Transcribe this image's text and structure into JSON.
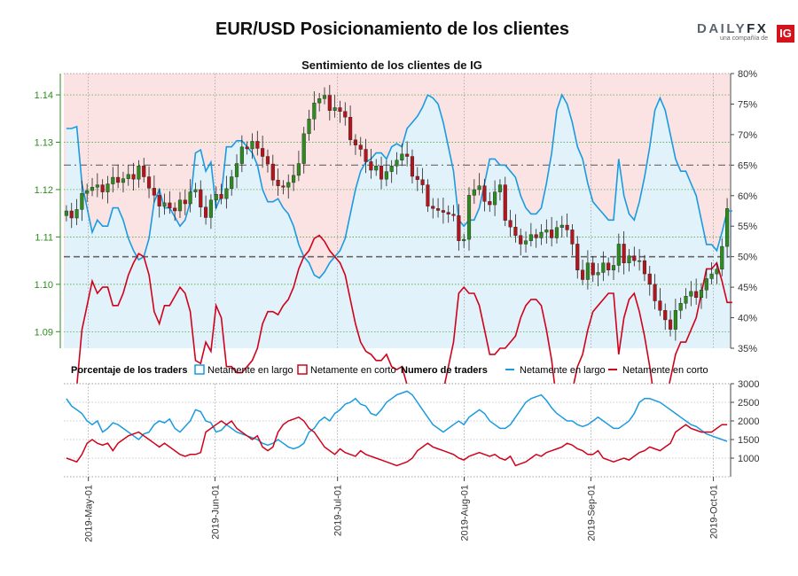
{
  "header": {
    "title": "EUR/USD Posicionamiento de los clientes",
    "logo_word": "DAILY",
    "logo_word_fx": "FX",
    "logo_sub": "una compañía de",
    "logo_ig": "IG"
  },
  "chart_data": [
    {
      "type": "line",
      "title": "Sentimiento de los clientes de IG",
      "x_start": "2019-04-25",
      "x_ticks": [
        "2019-May-01",
        "2019-Jun-01",
        "2019-Jul-01",
        "2019-Aug-01",
        "2019-Sep-01",
        "2019-Oct-01"
      ],
      "y_left_ticks": [
        "1.09",
        "1.10",
        "1.11",
        "1.12",
        "1.13",
        "1.14"
      ],
      "y_left_range": [
        1.0865,
        1.1445
      ],
      "y_right_ticks": [
        "35%",
        "40%",
        "45%",
        "50%",
        "55%",
        "60%",
        "65%",
        "70%",
        "75%",
        "80%"
      ],
      "y_right_range": [
        35,
        80
      ],
      "reference_lines_pct": [
        50,
        65
      ],
      "price_series_name": "EUR/USD",
      "price_close": [
        1.1155,
        1.114,
        1.1158,
        1.1192,
        1.1198,
        1.1205,
        1.121,
        1.1195,
        1.1212,
        1.1226,
        1.1215,
        1.1223,
        1.1232,
        1.1222,
        1.125,
        1.1227,
        1.1203,
        1.1188,
        1.1165,
        1.1172,
        1.1161,
        1.1155,
        1.1178,
        1.117,
        1.1195,
        1.12,
        1.1163,
        1.1141,
        1.1178,
        1.119,
        1.1181,
        1.1202,
        1.1227,
        1.1255,
        1.129,
        1.1286,
        1.1302,
        1.1287,
        1.127,
        1.1254,
        1.122,
        1.1208,
        1.1205,
        1.1215,
        1.123,
        1.1255,
        1.1318,
        1.1349,
        1.1383,
        1.1392,
        1.1399,
        1.1367,
        1.1373,
        1.1365,
        1.1353,
        1.1305,
        1.1294,
        1.1285,
        1.1259,
        1.1241,
        1.125,
        1.1222,
        1.1238,
        1.125,
        1.1262,
        1.1275,
        1.127,
        1.1228,
        1.1221,
        1.121,
        1.1165,
        1.116,
        1.1156,
        1.1152,
        1.1148,
        1.1145,
        1.1092,
        1.1095,
        1.1188,
        1.12,
        1.1208,
        1.1175,
        1.1168,
        1.1195,
        1.121,
        1.1135,
        1.1121,
        1.1103,
        1.1085,
        1.1092,
        1.1105,
        1.1098,
        1.111,
        1.1115,
        1.1098,
        1.112,
        1.1125,
        1.1115,
        1.1085,
        1.103,
        1.101,
        1.1045,
        1.102,
        1.1025,
        1.1045,
        1.103,
        1.104,
        1.1085,
        1.1045,
        1.106,
        1.105,
        1.105,
        1.1022,
        1.1,
        1.0965,
        1.0945,
        1.0925,
        1.0905,
        1.0945,
        1.096,
        1.0975,
        1.0985,
        1.0972,
        1.0988,
        1.1012,
        1.1022,
        1.1032,
        1.108,
        1.116
      ],
      "series": [
        {
          "name": "Netamente en largo",
          "color": "#1a9be0",
          "values_pct": [
            71,
            71,
            71.3,
            62,
            58,
            54,
            56,
            55,
            55,
            58,
            58,
            56,
            53,
            51,
            49.5,
            50,
            53,
            59,
            61,
            58,
            58,
            56.5,
            55,
            56,
            59,
            67,
            67.5,
            64,
            65.5,
            58,
            60,
            68,
            68,
            69,
            69,
            68,
            67,
            65,
            61,
            59,
            59,
            59.5,
            58,
            57,
            55,
            52,
            50,
            49,
            47,
            46.5,
            47.5,
            49,
            50,
            51,
            53,
            57,
            61,
            64,
            65.5,
            66,
            67,
            67,
            66,
            68,
            68.5,
            68,
            71,
            72,
            73,
            74.5,
            76.5,
            76,
            75,
            72,
            68,
            64,
            56,
            55,
            56,
            56,
            58,
            62,
            66,
            66,
            65,
            65,
            64,
            63,
            60,
            58,
            57,
            57,
            58,
            62,
            67,
            74,
            76.5,
            75,
            72,
            68,
            66,
            62,
            59,
            58,
            57,
            56,
            56,
            66,
            60,
            57,
            56,
            59,
            63,
            68,
            74,
            76,
            74,
            70,
            66,
            64,
            64,
            62,
            60,
            56,
            52,
            52,
            51,
            54,
            57.5,
            57.5
          ]
        },
        {
          "name": "Netamente en corto",
          "color": "#d0021b",
          "values_pct": [
            29,
            29,
            28.7,
            38,
            42,
            46,
            44,
            45,
            45,
            42,
            42,
            44,
            47,
            49,
            50.5,
            50,
            47,
            41,
            39,
            42,
            42,
            43.5,
            45,
            44,
            41,
            33,
            32.5,
            36,
            34.5,
            42,
            40,
            32,
            32,
            31,
            31,
            32,
            33,
            35,
            39,
            41,
            41,
            40.5,
            42,
            43,
            45,
            48,
            50,
            51,
            53,
            53.5,
            52.5,
            51,
            50,
            49,
            47,
            43,
            39,
            36,
            34.5,
            34,
            33,
            33,
            34,
            32,
            31.5,
            32,
            29,
            28,
            27,
            25.5,
            23.5,
            24,
            25,
            28,
            32,
            36,
            44,
            45,
            44,
            44,
            42,
            38,
            34,
            34,
            35,
            35,
            36,
            37,
            40,
            42,
            43,
            43,
            42,
            38,
            33,
            26,
            23.5,
            25,
            28,
            32,
            34,
            38,
            41,
            42,
            43,
            44,
            44,
            34,
            40,
            43,
            44,
            41,
            37,
            32,
            26,
            24,
            26,
            30,
            34,
            36,
            36,
            38,
            40,
            44,
            48,
            48,
            49,
            46,
            42.5,
            42.5
          ]
        }
      ]
    },
    {
      "type": "line",
      "title": "",
      "y_right_ticks": [
        "1000",
        "1500",
        "2000",
        "2500",
        "3000"
      ],
      "y_right_range": [
        500,
        3000
      ],
      "series": [
        {
          "name": "Netamente en largo",
          "color": "#1a9be0",
          "values": [
            2600,
            2400,
            2300,
            2200,
            2000,
            1900,
            2000,
            1700,
            1800,
            1950,
            1900,
            1800,
            1700,
            1600,
            1500,
            1650,
            1700,
            1900,
            2000,
            1950,
            2050,
            1800,
            1700,
            1850,
            2000,
            2300,
            2250,
            2000,
            1950,
            1700,
            1750,
            1900,
            1800,
            1700,
            1650,
            1600,
            1550,
            1500,
            1400,
            1350,
            1400,
            1500,
            1400,
            1300,
            1250,
            1300,
            1400,
            1700,
            1800,
            2000,
            2100,
            2000,
            2200,
            2300,
            2450,
            2500,
            2600,
            2450,
            2400,
            2200,
            2150,
            2300,
            2500,
            2600,
            2700,
            2750,
            2800,
            2700,
            2500,
            2300,
            2100,
            1900,
            1800,
            1700,
            1800,
            1900,
            2000,
            1900,
            2100,
            2200,
            2300,
            2200,
            2000,
            1900,
            1800,
            1800,
            1900,
            2100,
            2300,
            2500,
            2600,
            2650,
            2700,
            2550,
            2350,
            2200,
            2100,
            2000,
            2000,
            1900,
            1850,
            1900,
            2000,
            2100,
            2000,
            1900,
            1800,
            1800,
            1900,
            2000,
            2200,
            2500,
            2600,
            2600,
            2550,
            2500,
            2400,
            2300,
            2200,
            2100,
            2000,
            1900,
            1850,
            1750,
            1650,
            1600,
            1550,
            1500,
            1450
          ]
        },
        {
          "name": "Netamente en corto",
          "color": "#d0021b",
          "values": [
            1000,
            950,
            900,
            1100,
            1400,
            1500,
            1400,
            1350,
            1400,
            1200,
            1400,
            1500,
            1600,
            1650,
            1700,
            1600,
            1500,
            1400,
            1300,
            1400,
            1300,
            1200,
            1100,
            1050,
            1100,
            1100,
            1150,
            1700,
            1800,
            1900,
            2000,
            1900,
            2000,
            1800,
            1700,
            1600,
            1500,
            1600,
            1300,
            1200,
            1300,
            1700,
            1900,
            2000,
            2050,
            2100,
            2000,
            1800,
            1700,
            1500,
            1300,
            1200,
            1100,
            1250,
            1150,
            1100,
            1050,
            1200,
            1100,
            1050,
            1000,
            950,
            900,
            850,
            800,
            850,
            900,
            1000,
            1200,
            1300,
            1400,
            1300,
            1250,
            1200,
            1150,
            1100,
            1000,
            950,
            1050,
            1100,
            1150,
            1100,
            1050,
            1100,
            1000,
            950,
            1050,
            800,
            850,
            900,
            1000,
            1100,
            1050,
            1150,
            1200,
            1250,
            1300,
            1400,
            1350,
            1250,
            1200,
            1100,
            1100,
            1200,
            1000,
            950,
            900,
            950,
            1000,
            950,
            1050,
            1150,
            1200,
            1300,
            1250,
            1200,
            1300,
            1400,
            1700,
            1800,
            1900,
            1800,
            1750,
            1700,
            1700,
            1700,
            1800,
            1900,
            1900
          ]
        }
      ]
    }
  ],
  "legend": {
    "pct_title": "Porcentaje de los traders",
    "pct_long": "Netamente en largo",
    "pct_short": "Netamente en corto",
    "num_title": "Numero de traders",
    "num_long": "Netamente en largo",
    "num_short": "Netamente en corto"
  }
}
